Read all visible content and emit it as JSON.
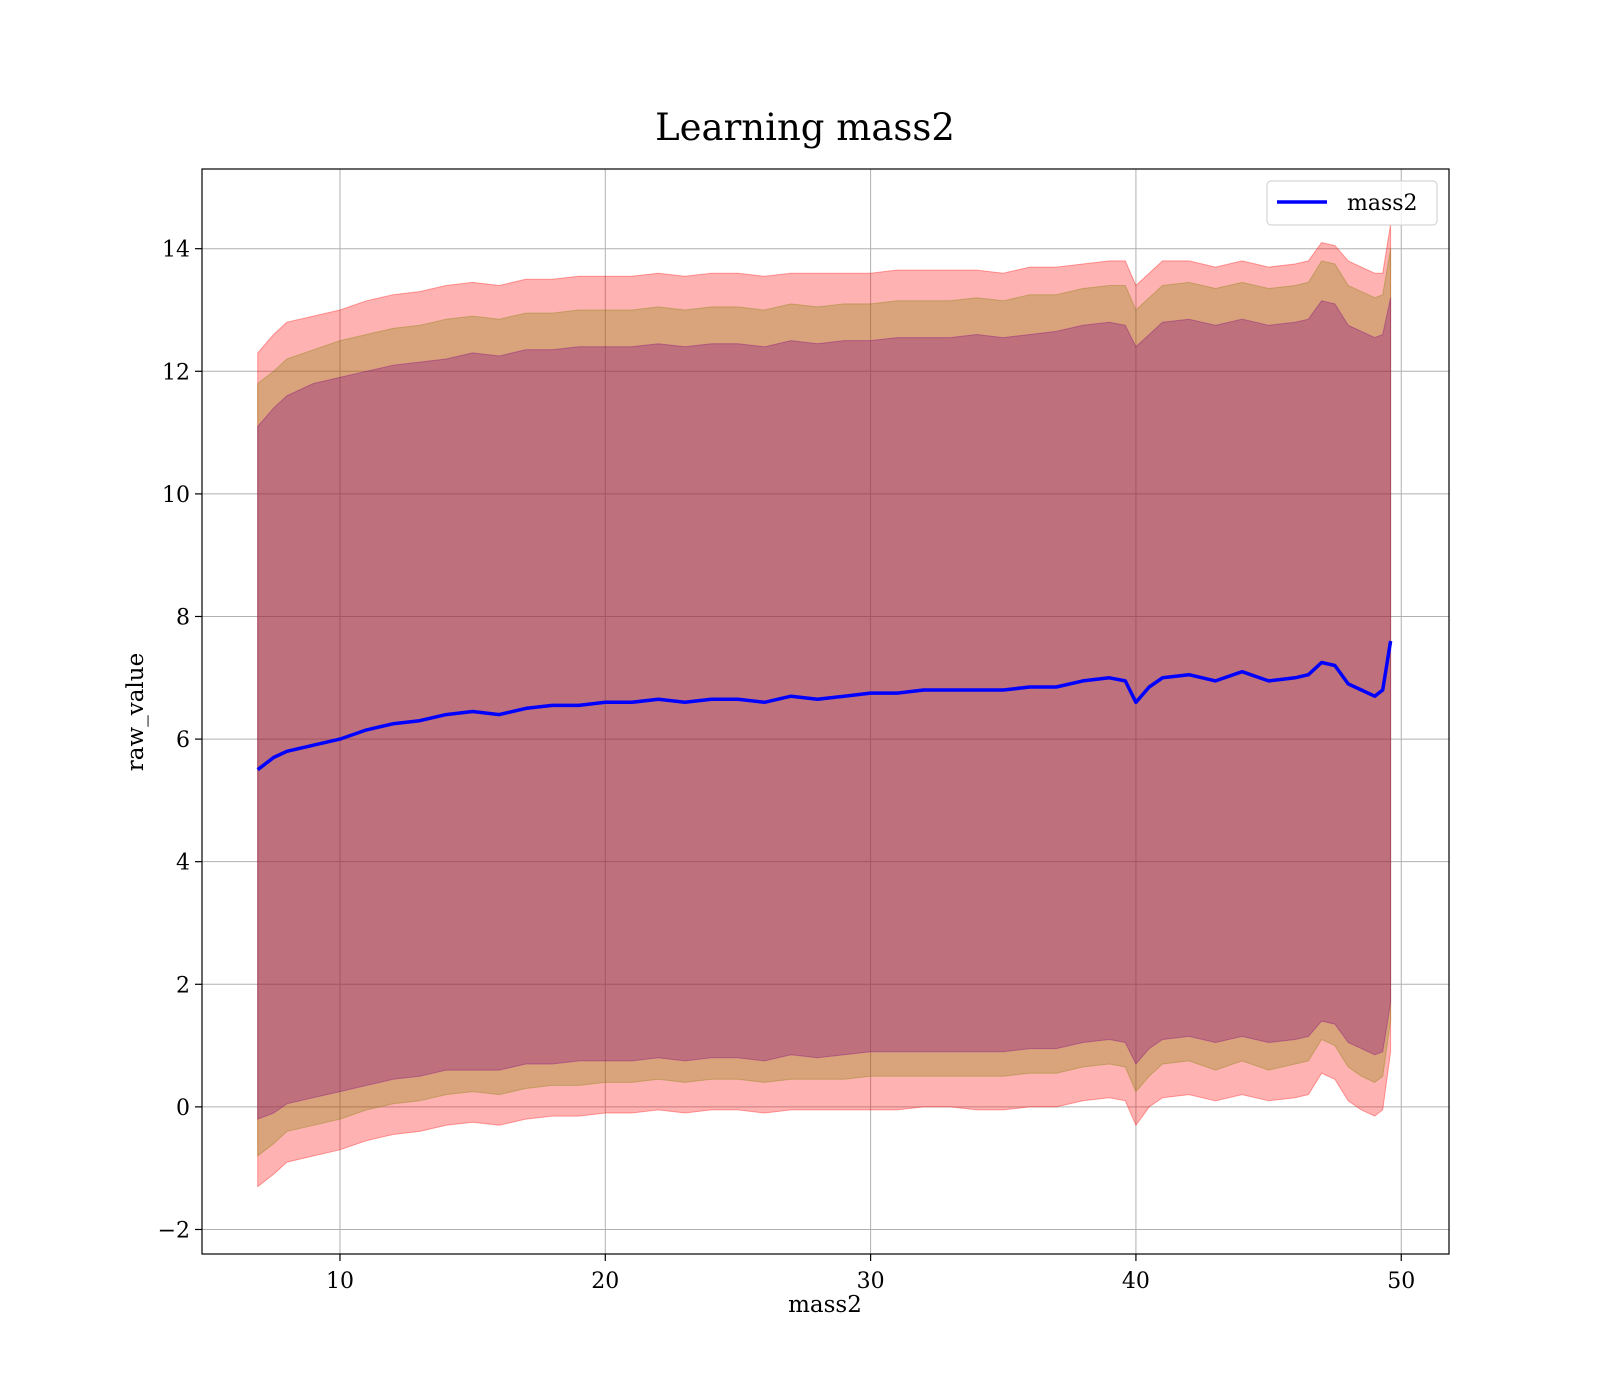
{
  "chart_data": {
    "type": "line",
    "title": "Learning mass2",
    "xlabel": "mass2",
    "ylabel": "raw_value",
    "xlim": [
      4.8,
      51.8
    ],
    "ylim": [
      -2.4,
      15.3
    ],
    "x_ticks": [
      10,
      20,
      30,
      40,
      50
    ],
    "x_tick_labels": [
      "10",
      "20",
      "30",
      "40",
      "50"
    ],
    "y_ticks": [
      -2,
      0,
      2,
      4,
      6,
      8,
      10,
      12,
      14
    ],
    "y_tick_labels": [
      "−2",
      "0",
      "2",
      "4",
      "6",
      "8",
      "10",
      "12",
      "14"
    ],
    "grid": true,
    "legend": {
      "position": "top-right",
      "entries": [
        {
          "label": "mass2",
          "color": "#0000ff"
        }
      ]
    },
    "colors": {
      "line": "#0000ff",
      "outer_band": "#ff0000",
      "middle_band": "#808000",
      "inner_band": "#800080",
      "grid": "#b0b0b0"
    },
    "series": [
      {
        "name": "mass2",
        "x": [
          6.9,
          7.5,
          8,
          9,
          10,
          11,
          12,
          13,
          14,
          15,
          16,
          17,
          18,
          19,
          20,
          21,
          22,
          23,
          24,
          25,
          26,
          27,
          28,
          29,
          30,
          31,
          32,
          33,
          34,
          35,
          36,
          37,
          38,
          39,
          39.6,
          40,
          40.5,
          41,
          42,
          43,
          44,
          45,
          46,
          46.5,
          47,
          47.5,
          48,
          48.5,
          49,
          49.3,
          49.6
        ],
        "y": [
          5.5,
          5.7,
          5.8,
          5.9,
          6.0,
          6.15,
          6.25,
          6.3,
          6.4,
          6.45,
          6.4,
          6.5,
          6.55,
          6.55,
          6.6,
          6.6,
          6.65,
          6.6,
          6.65,
          6.65,
          6.6,
          6.7,
          6.65,
          6.7,
          6.75,
          6.75,
          6.8,
          6.8,
          6.8,
          6.8,
          6.85,
          6.85,
          6.95,
          7.0,
          6.95,
          6.6,
          6.85,
          7.0,
          7.05,
          6.95,
          7.1,
          6.95,
          7.0,
          7.05,
          7.25,
          7.2,
          6.9,
          6.8,
          6.7,
          6.8,
          7.6
        ]
      }
    ],
    "bands": [
      {
        "x": [
          6.9,
          7.5,
          8,
          9,
          10,
          11,
          12,
          13,
          14,
          15,
          16,
          17,
          18,
          19,
          20,
          21,
          22,
          23,
          24,
          25,
          26,
          27,
          28,
          29,
          30,
          31,
          32,
          33,
          34,
          35,
          36,
          37,
          38,
          39,
          39.6,
          40,
          40.5,
          41,
          42,
          43,
          44,
          45,
          46,
          46.5,
          47,
          47.5,
          48,
          48.5,
          49,
          49.3,
          49.6
        ],
        "upper": [
          12.3,
          12.6,
          12.8,
          12.9,
          13.0,
          13.15,
          13.25,
          13.3,
          13.4,
          13.45,
          13.4,
          13.5,
          13.5,
          13.55,
          13.55,
          13.55,
          13.6,
          13.55,
          13.6,
          13.6,
          13.55,
          13.6,
          13.6,
          13.6,
          13.6,
          13.65,
          13.65,
          13.65,
          13.65,
          13.6,
          13.7,
          13.7,
          13.75,
          13.8,
          13.8,
          13.4,
          13.6,
          13.8,
          13.8,
          13.7,
          13.8,
          13.7,
          13.75,
          13.8,
          14.1,
          14.05,
          13.8,
          13.7,
          13.6,
          13.6,
          14.4
        ],
        "lower": [
          -1.3,
          -1.1,
          -0.9,
          -0.8,
          -0.7,
          -0.55,
          -0.45,
          -0.4,
          -0.3,
          -0.25,
          -0.3,
          -0.2,
          -0.15,
          -0.15,
          -0.1,
          -0.1,
          -0.05,
          -0.1,
          -0.05,
          -0.05,
          -0.1,
          -0.05,
          -0.05,
          -0.05,
          -0.05,
          -0.05,
          0.0,
          0.0,
          -0.05,
          -0.05,
          0.0,
          0.0,
          0.1,
          0.15,
          0.1,
          -0.3,
          0.0,
          0.15,
          0.2,
          0.1,
          0.2,
          0.1,
          0.15,
          0.2,
          0.55,
          0.45,
          0.1,
          -0.05,
          -0.15,
          -0.05,
          0.9
        ]
      },
      {
        "x": [
          6.9,
          7.5,
          8,
          9,
          10,
          11,
          12,
          13,
          14,
          15,
          16,
          17,
          18,
          19,
          20,
          21,
          22,
          23,
          24,
          25,
          26,
          27,
          28,
          29,
          30,
          31,
          32,
          33,
          34,
          35,
          36,
          37,
          38,
          39,
          39.6,
          40,
          40.5,
          41,
          42,
          43,
          44,
          45,
          46,
          46.5,
          47,
          47.5,
          48,
          48.5,
          49,
          49.3,
          49.6
        ],
        "upper": [
          11.8,
          12.0,
          12.2,
          12.35,
          12.5,
          12.6,
          12.7,
          12.75,
          12.85,
          12.9,
          12.85,
          12.95,
          12.95,
          13.0,
          13.0,
          13.0,
          13.05,
          13.0,
          13.05,
          13.05,
          13.0,
          13.1,
          13.05,
          13.1,
          13.1,
          13.15,
          13.15,
          13.15,
          13.2,
          13.15,
          13.25,
          13.25,
          13.35,
          13.4,
          13.4,
          13.0,
          13.2,
          13.4,
          13.45,
          13.35,
          13.45,
          13.35,
          13.4,
          13.45,
          13.8,
          13.75,
          13.4,
          13.3,
          13.2,
          13.25,
          14.0
        ],
        "lower": [
          -0.8,
          -0.6,
          -0.4,
          -0.3,
          -0.2,
          -0.05,
          0.05,
          0.1,
          0.2,
          0.25,
          0.2,
          0.3,
          0.35,
          0.35,
          0.4,
          0.4,
          0.45,
          0.4,
          0.45,
          0.45,
          0.4,
          0.45,
          0.45,
          0.45,
          0.5,
          0.5,
          0.5,
          0.5,
          0.5,
          0.5,
          0.55,
          0.55,
          0.65,
          0.7,
          0.65,
          0.25,
          0.5,
          0.7,
          0.75,
          0.6,
          0.75,
          0.6,
          0.7,
          0.75,
          1.1,
          1.0,
          0.65,
          0.5,
          0.4,
          0.5,
          1.4
        ]
      },
      {
        "x": [
          6.9,
          7.5,
          8,
          9,
          10,
          11,
          12,
          13,
          14,
          15,
          16,
          17,
          18,
          19,
          20,
          21,
          22,
          23,
          24,
          25,
          26,
          27,
          28,
          29,
          30,
          31,
          32,
          33,
          34,
          35,
          36,
          37,
          38,
          39,
          39.6,
          40,
          40.5,
          41,
          42,
          43,
          44,
          45,
          46,
          46.5,
          47,
          47.5,
          48,
          48.5,
          49,
          49.3,
          49.6
        ],
        "upper": [
          11.1,
          11.4,
          11.6,
          11.8,
          11.9,
          12.0,
          12.1,
          12.15,
          12.2,
          12.3,
          12.25,
          12.35,
          12.35,
          12.4,
          12.4,
          12.4,
          12.45,
          12.4,
          12.45,
          12.45,
          12.4,
          12.5,
          12.45,
          12.5,
          12.5,
          12.55,
          12.55,
          12.55,
          12.6,
          12.55,
          12.6,
          12.65,
          12.75,
          12.8,
          12.75,
          12.4,
          12.6,
          12.8,
          12.85,
          12.75,
          12.85,
          12.75,
          12.8,
          12.85,
          13.15,
          13.1,
          12.75,
          12.65,
          12.55,
          12.6,
          13.2
        ],
        "lower": [
          -0.2,
          -0.1,
          0.05,
          0.15,
          0.25,
          0.35,
          0.45,
          0.5,
          0.6,
          0.6,
          0.6,
          0.7,
          0.7,
          0.75,
          0.75,
          0.75,
          0.8,
          0.75,
          0.8,
          0.8,
          0.75,
          0.85,
          0.8,
          0.85,
          0.9,
          0.9,
          0.9,
          0.9,
          0.9,
          0.9,
          0.95,
          0.95,
          1.05,
          1.1,
          1.05,
          0.7,
          0.95,
          1.1,
          1.15,
          1.05,
          1.15,
          1.05,
          1.1,
          1.15,
          1.4,
          1.35,
          1.05,
          0.95,
          0.85,
          0.9,
          1.7
        ]
      }
    ]
  }
}
